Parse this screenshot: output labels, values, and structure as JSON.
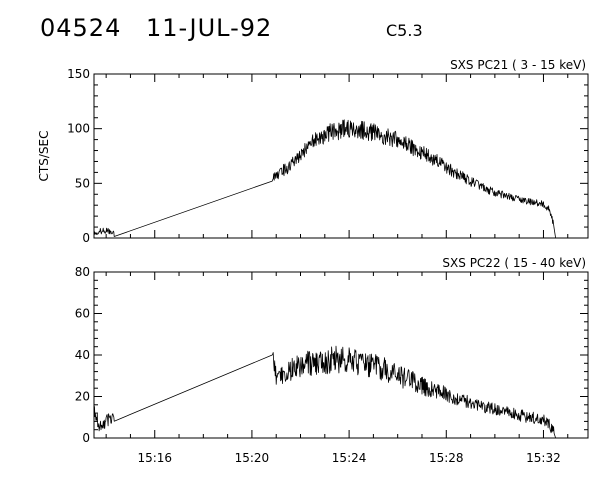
{
  "header": {
    "event_id": "04524",
    "date": "11-JUL-92",
    "goes_class": "C5.3"
  },
  "chart_data": [
    {
      "type": "line",
      "title": "SXS PC21  (  3 - 15 keV)",
      "ylabel": "CTS/SEC",
      "xlabel": "",
      "x_unit": "UT time (HH:MM)",
      "xlim": [
        "15:13:30",
        "15:33:50"
      ],
      "ylim": [
        0,
        150
      ],
      "yticks": [
        0,
        50,
        100,
        150
      ],
      "xticks": [
        "15:16",
        "15:20",
        "15:24",
        "15:28",
        "15:32"
      ],
      "grid": false,
      "series": [
        {
          "points": [
            [
              "15:13:30",
              5
            ],
            [
              "15:14:00",
              7
            ],
            [
              "15:14:20",
              4
            ],
            [
              "15:20:50",
              52
            ],
            [
              "15:21:00",
              58
            ],
            [
              "15:21:30",
              65
            ],
            [
              "15:22:00",
              75
            ],
            [
              "15:22:30",
              88
            ],
            [
              "15:23:00",
              95
            ],
            [
              "15:23:30",
              98
            ],
            [
              "15:24:00",
              100
            ],
            [
              "15:24:30",
              99
            ],
            [
              "15:25:00",
              96
            ],
            [
              "15:25:30",
              93
            ],
            [
              "15:26:00",
              89
            ],
            [
              "15:26:30",
              84
            ],
            [
              "15:27:00",
              78
            ],
            [
              "15:27:30",
              72
            ],
            [
              "15:28:00",
              65
            ],
            [
              "15:28:30",
              58
            ],
            [
              "15:29:00",
              52
            ],
            [
              "15:29:30",
              46
            ],
            [
              "15:30:00",
              42
            ],
            [
              "15:30:30",
              38
            ],
            [
              "15:31:00",
              35
            ],
            [
              "15:31:30",
              33
            ],
            [
              "15:32:00",
              31
            ],
            [
              "15:32:15",
              26
            ],
            [
              "15:32:25",
              12
            ],
            [
              "15:32:30",
              0
            ]
          ]
        }
      ]
    },
    {
      "type": "line",
      "title": "SXS PC22  ( 15 - 40 keV)",
      "ylabel": "",
      "xlabel": "",
      "x_unit": "UT time (HH:MM)",
      "xlim": [
        "15:13:30",
        "15:33:50"
      ],
      "ylim": [
        0,
        80
      ],
      "yticks": [
        0,
        20,
        40,
        60,
        80
      ],
      "xticks": [
        "15:16",
        "15:20",
        "15:24",
        "15:28",
        "15:32"
      ],
      "grid": false,
      "series": [
        {
          "points": [
            [
              "15:13:30",
              13
            ],
            [
              "15:13:45",
              5
            ],
            [
              "15:14:00",
              8
            ],
            [
              "15:14:20",
              11
            ],
            [
              "15:20:50",
              40
            ],
            [
              "15:21:00",
              30
            ],
            [
              "15:21:30",
              33
            ],
            [
              "15:22:00",
              35
            ],
            [
              "15:22:30",
              36
            ],
            [
              "15:23:00",
              37
            ],
            [
              "15:23:30",
              38
            ],
            [
              "15:24:00",
              37
            ],
            [
              "15:24:30",
              36
            ],
            [
              "15:25:00",
              35
            ],
            [
              "15:25:30",
              33
            ],
            [
              "15:26:00",
              30
            ],
            [
              "15:26:30",
              28
            ],
            [
              "15:27:00",
              25
            ],
            [
              "15:27:30",
              23
            ],
            [
              "15:28:00",
              21
            ],
            [
              "15:28:30",
              19
            ],
            [
              "15:29:00",
              17
            ],
            [
              "15:29:30",
              15
            ],
            [
              "15:30:00",
              14
            ],
            [
              "15:30:30",
              13
            ],
            [
              "15:31:00",
              11
            ],
            [
              "15:31:30",
              10
            ],
            [
              "15:32:00",
              9
            ],
            [
              "15:32:15",
              7
            ],
            [
              "15:32:25",
              3
            ],
            [
              "15:32:30",
              0
            ]
          ]
        }
      ]
    }
  ]
}
